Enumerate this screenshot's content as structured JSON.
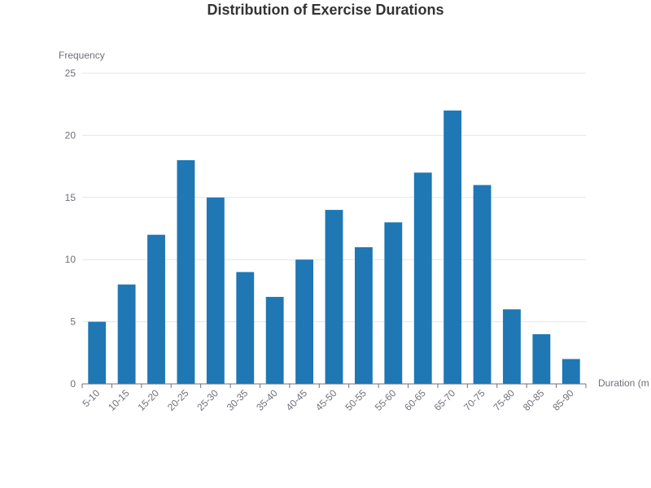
{
  "chart_data": {
    "type": "bar",
    "title": "Distribution of Exercise Durations",
    "xlabel": "Duration (m",
    "ylabel": "Frequency",
    "categories": [
      "5-10",
      "10-15",
      "15-20",
      "20-25",
      "25-30",
      "30-35",
      "35-40",
      "40-45",
      "45-50",
      "50-55",
      "55-60",
      "60-65",
      "65-70",
      "70-75",
      "75-80",
      "80-85",
      "85-90"
    ],
    "values": [
      5,
      8,
      12,
      18,
      15,
      9,
      7,
      10,
      14,
      11,
      13,
      17,
      22,
      16,
      6,
      4,
      2
    ],
    "ylim": [
      0,
      25
    ],
    "yticks": [
      0,
      5,
      10,
      15,
      20,
      25
    ],
    "grid": true,
    "colors": {
      "bar": "#1f77b4",
      "grid": "#e0e6f1",
      "axis": "#6e7079",
      "title": "#333333"
    }
  }
}
